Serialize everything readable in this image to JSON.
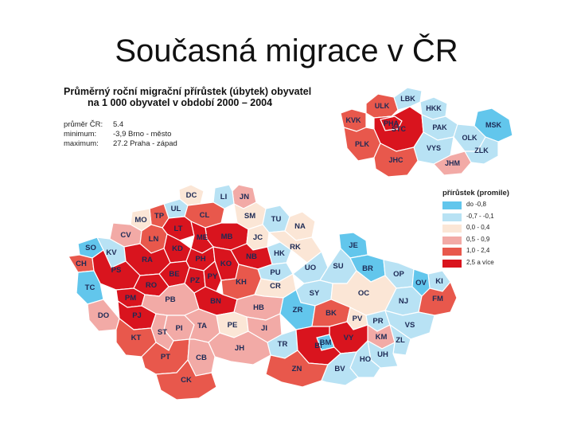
{
  "slide_title": "Současná migrace v ČR",
  "map_header": {
    "line1": "Průměrný roční migrační přírůstek (úbytek) obyvatel",
    "line2": "na 1 000 obyvatel v období 2000 – 2004"
  },
  "stats": [
    {
      "label": "průměr ČR:",
      "value": "5.4"
    },
    {
      "label": "minimum:",
      "value": "-3,9 Brno - město"
    },
    {
      "label": "maximum:",
      "value": "27.2 Praha - západ"
    }
  ],
  "legend": {
    "title": "přírůstek (promile)",
    "items": [
      {
        "label": "do -0,8",
        "color": "#62c6ec"
      },
      {
        "label": "-0,7 - -0,1",
        "color": "#b8e2f4"
      },
      {
        "label": "0,0 - 0,4",
        "color": "#fbe6d6"
      },
      {
        "label": "0,5 - 0,9",
        "color": "#f2aaa6"
      },
      {
        "label": "1,0 - 2,4",
        "color": "#e8584c"
      },
      {
        "label": "2,5 a více",
        "color": "#d9141e"
      }
    ]
  },
  "colors": {
    "border": "#ffffff"
  },
  "regions_map": [
    {
      "code": "KVK",
      "cls": 5
    },
    {
      "code": "ULK",
      "cls": 5
    },
    {
      "code": "LBK",
      "cls": 2
    },
    {
      "code": "HKK",
      "cls": 2
    },
    {
      "code": "PHA",
      "cls": 6
    },
    {
      "code": "STC",
      "cls": 6
    },
    {
      "code": "PLK",
      "cls": 5
    },
    {
      "code": "PAK",
      "cls": 2
    },
    {
      "code": "MSK",
      "cls": 1
    },
    {
      "code": "OLK",
      "cls": 2
    },
    {
      "code": "VYS",
      "cls": 2
    },
    {
      "code": "JHC",
      "cls": 5
    },
    {
      "code": "JHM",
      "cls": 4
    },
    {
      "code": "ZLK",
      "cls": 2
    }
  ],
  "districts": [
    {
      "code": "DC",
      "cls": 3
    },
    {
      "code": "JN",
      "cls": 4
    },
    {
      "code": "LI",
      "cls": 2
    },
    {
      "code": "UL",
      "cls": 2
    },
    {
      "code": "CL",
      "cls": 5
    },
    {
      "code": "SM",
      "cls": 3
    },
    {
      "code": "TP",
      "cls": 5
    },
    {
      "code": "LT",
      "cls": 6
    },
    {
      "code": "TU",
      "cls": 2
    },
    {
      "code": "MO",
      "cls": 3
    },
    {
      "code": "CV",
      "cls": 4
    },
    {
      "code": "NA",
      "cls": 3
    },
    {
      "code": "MB",
      "cls": 6
    },
    {
      "code": "JC",
      "cls": 3
    },
    {
      "code": "ME",
      "cls": 6
    },
    {
      "code": "LN",
      "cls": 5
    },
    {
      "code": "SO",
      "cls": 1
    },
    {
      "code": "KV",
      "cls": 2
    },
    {
      "code": "HK",
      "cls": 2
    },
    {
      "code": "RK",
      "cls": 3
    },
    {
      "code": "NB",
      "cls": 6
    },
    {
      "code": "KD",
      "cls": 6
    },
    {
      "code": "PH",
      "cls": 6
    },
    {
      "code": "PU",
      "cls": 2
    },
    {
      "code": "JE",
      "cls": 1
    },
    {
      "code": "RA",
      "cls": 6
    },
    {
      "code": "CH",
      "cls": 5
    },
    {
      "code": "KO",
      "cls": 6
    },
    {
      "code": "UO",
      "cls": 2
    },
    {
      "code": "SU",
      "cls": 2
    },
    {
      "code": "BR",
      "cls": 1
    },
    {
      "code": "PS",
      "cls": 6
    },
    {
      "code": "BE",
      "cls": 6
    },
    {
      "code": "PZ",
      "cls": 6
    },
    {
      "code": "PY",
      "cls": 6
    },
    {
      "code": "RO",
      "cls": 6
    },
    {
      "code": "KH",
      "cls": 5
    },
    {
      "code": "CR",
      "cls": 3
    },
    {
      "code": "OP",
      "cls": 2
    },
    {
      "code": "KI",
      "cls": 2
    },
    {
      "code": "OV",
      "cls": 1
    },
    {
      "code": "TC",
      "cls": 1
    },
    {
      "code": "PM",
      "cls": 6
    },
    {
      "code": "PJ",
      "cls": 6
    },
    {
      "code": "BN",
      "cls": 6
    },
    {
      "code": "SY",
      "cls": 2
    },
    {
      "code": "OC",
      "cls": 3
    },
    {
      "code": "NJ",
      "cls": 2
    },
    {
      "code": "FM",
      "cls": 5
    },
    {
      "code": "DO",
      "cls": 4
    },
    {
      "code": "PB",
      "cls": 4
    },
    {
      "code": "HB",
      "cls": 4
    },
    {
      "code": "ZR",
      "cls": 1
    },
    {
      "code": "BK",
      "cls": 5
    },
    {
      "code": "PV",
      "cls": 3
    },
    {
      "code": "PR",
      "cls": 2
    },
    {
      "code": "VS",
      "cls": 2
    },
    {
      "code": "PI",
      "cls": 4
    },
    {
      "code": "PE",
      "cls": 3
    },
    {
      "code": "TA",
      "cls": 4
    },
    {
      "code": "KT",
      "cls": 5
    },
    {
      "code": "ST",
      "cls": 4
    },
    {
      "code": "JI",
      "cls": 4
    },
    {
      "code": "KM",
      "cls": 4
    },
    {
      "code": "ZL",
      "cls": 2
    },
    {
      "code": "TR",
      "cls": 2
    },
    {
      "code": "BM",
      "cls": 1
    },
    {
      "code": "VY",
      "cls": 6
    },
    {
      "code": "JH",
      "cls": 4
    },
    {
      "code": "UH",
      "cls": 2
    },
    {
      "code": "BI",
      "cls": 6
    },
    {
      "code": "PT",
      "cls": 5
    },
    {
      "code": "CB",
      "cls": 4
    },
    {
      "code": "HO",
      "cls": 2
    },
    {
      "code": "ZN",
      "cls": 5
    },
    {
      "code": "BV",
      "cls": 2
    },
    {
      "code": "CK",
      "cls": 5
    }
  ]
}
